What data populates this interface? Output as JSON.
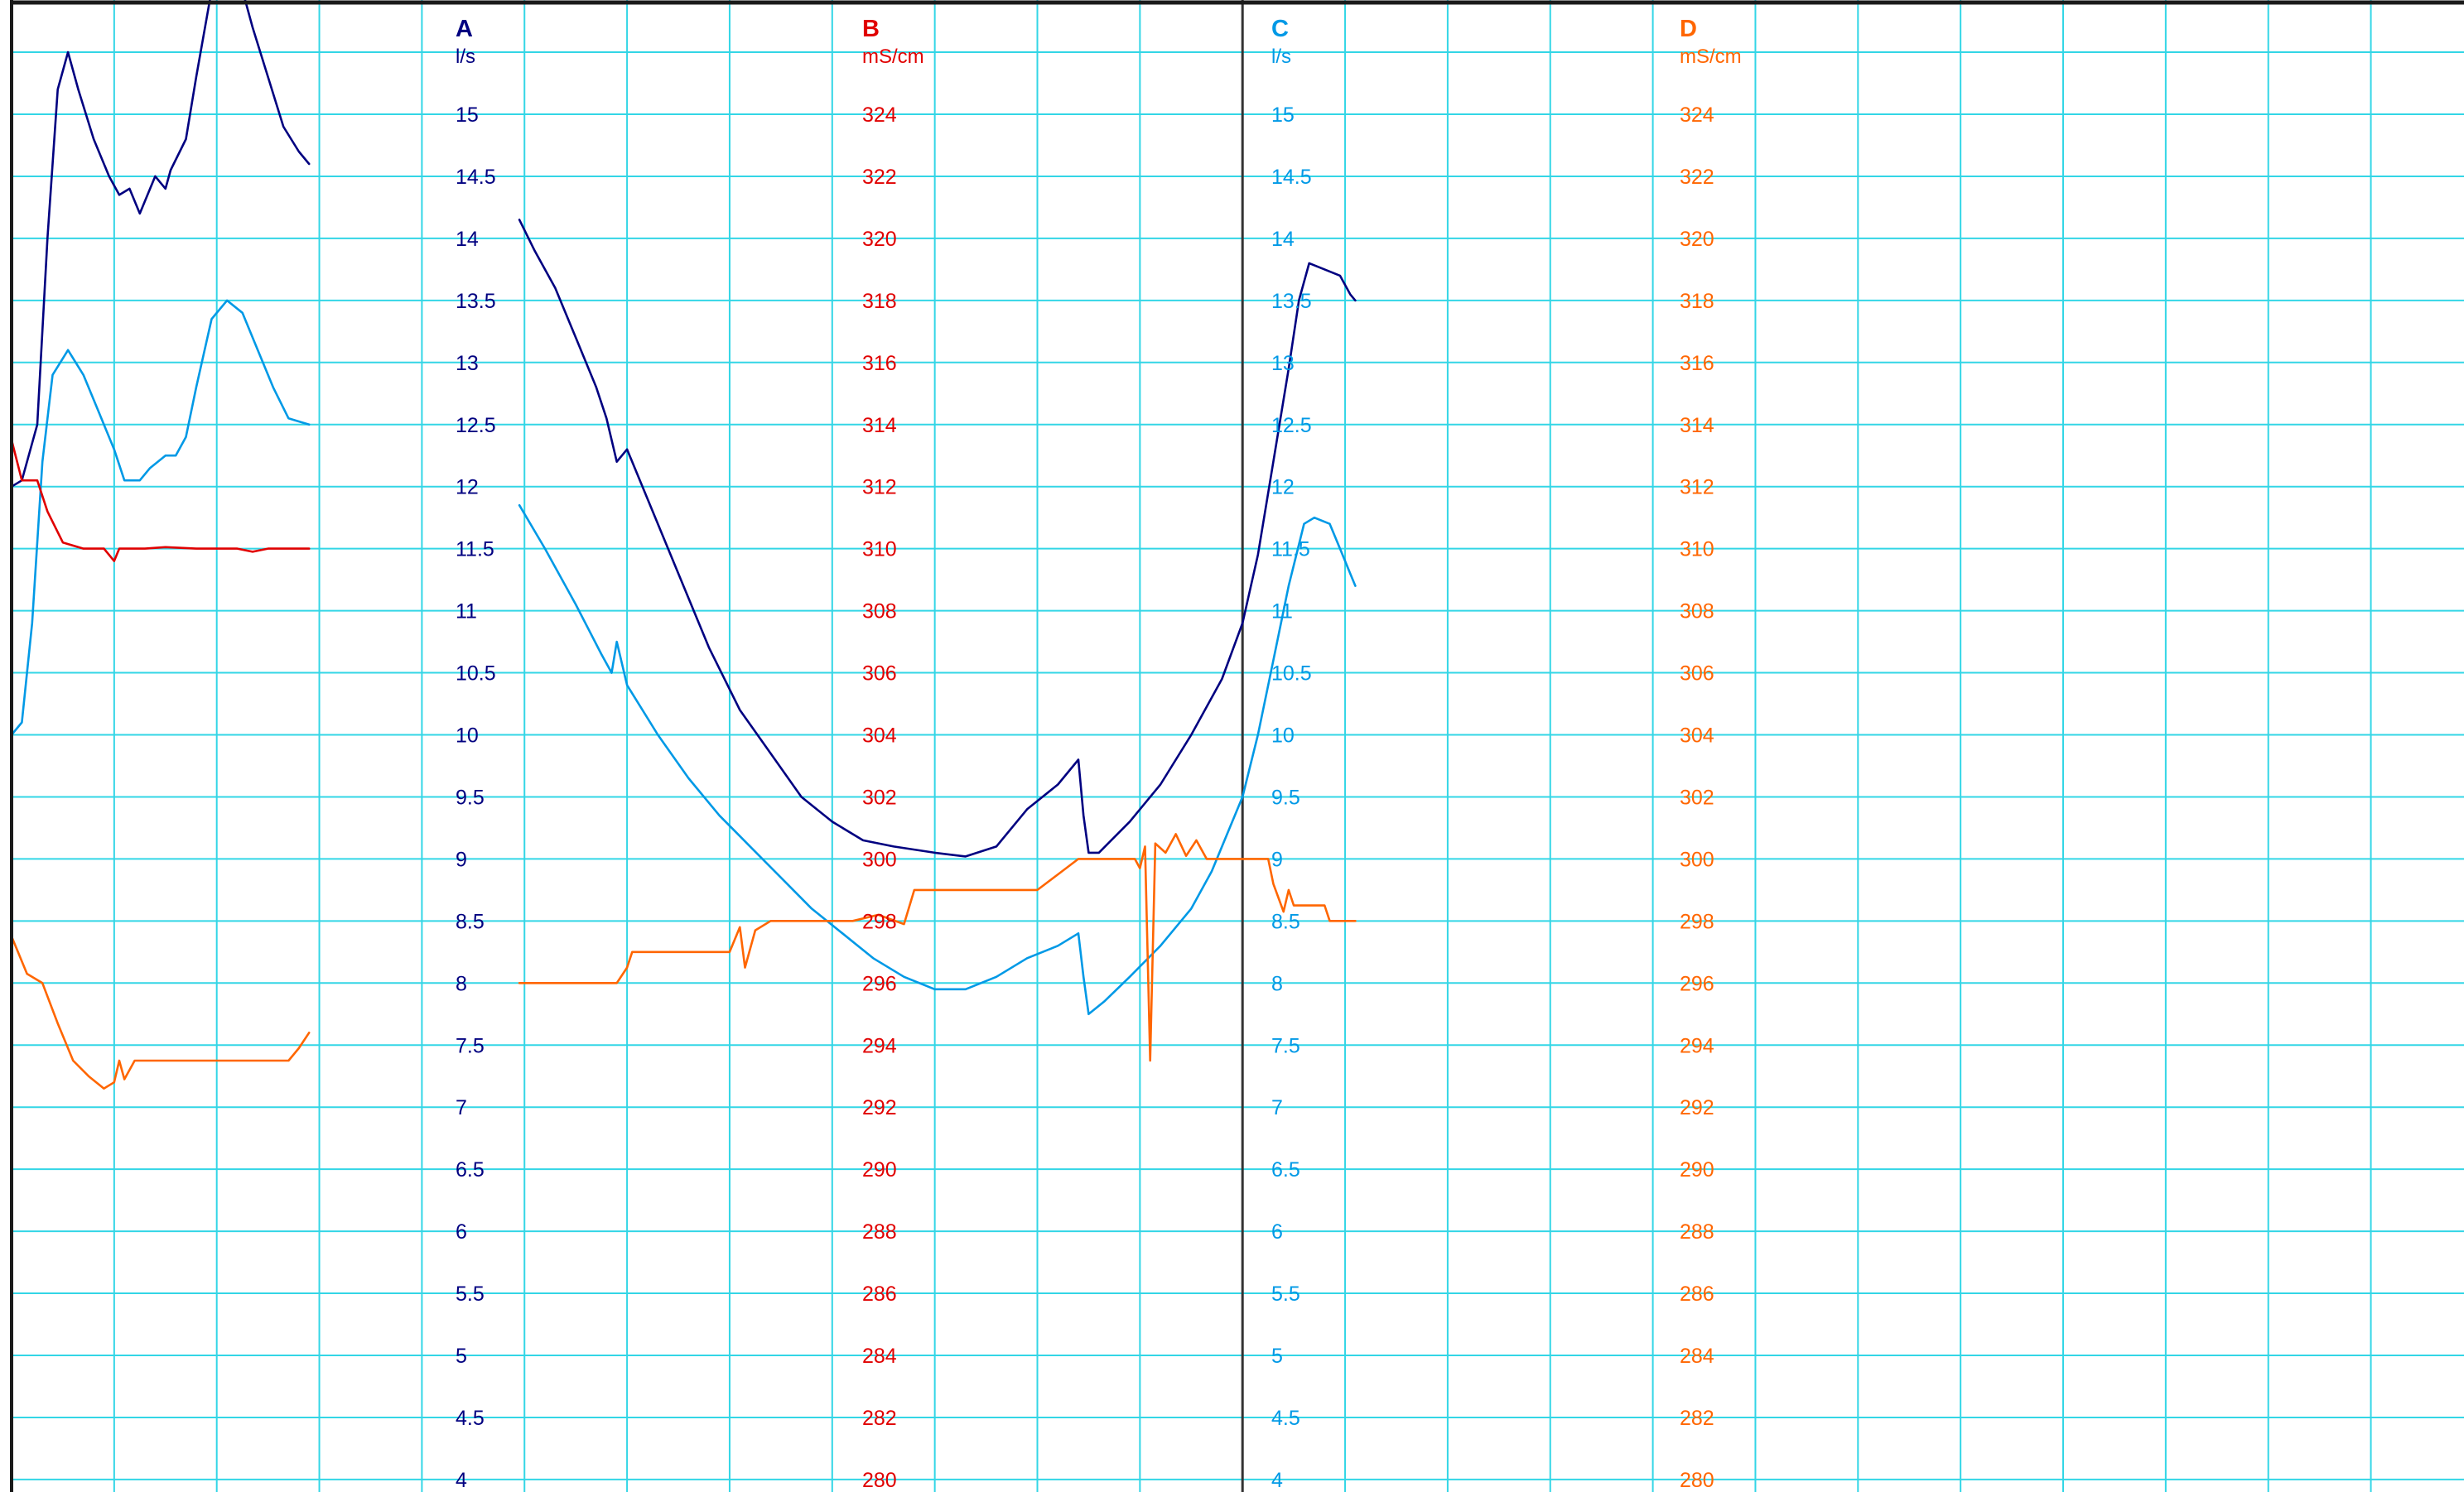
{
  "colors": {
    "background": "#ffffff",
    "grid": "#33d6e6",
    "frame": "#1a1a1a",
    "divider": "#333333",
    "A": "#000080",
    "B": "#e00000",
    "C": "#0099e6",
    "D": "#ff6600"
  },
  "chart_data": {
    "type": "line",
    "title": "",
    "grid": true,
    "axes": [
      {
        "letter": "A",
        "unit": "l/s",
        "min": 4,
        "max": 15,
        "step": 0.5,
        "ticks": [
          "15",
          "14.5",
          "14",
          "13.5",
          "13",
          "12.5",
          "12",
          "11.5",
          "11",
          "10.5",
          "10",
          "9.5",
          "9",
          "8.5",
          "8",
          "7.5",
          "7",
          "6.5",
          "6",
          "5.5",
          "5",
          "4.5",
          "4"
        ]
      },
      {
        "letter": "B",
        "unit": "mS/cm",
        "min": 280,
        "max": 324,
        "step": 2,
        "ticks": [
          "324",
          "322",
          "320",
          "318",
          "316",
          "314",
          "312",
          "310",
          "308",
          "306",
          "304",
          "302",
          "300",
          "298",
          "296",
          "294",
          "292",
          "290",
          "288",
          "286",
          "284",
          "282",
          "280"
        ]
      },
      {
        "letter": "C",
        "unit": "l/s",
        "min": 4,
        "max": 15,
        "step": 0.5,
        "ticks": [
          "15",
          "14.5",
          "14",
          "13.5",
          "13",
          "12.5",
          "12",
          "11.5",
          "11",
          "10.5",
          "10",
          "9.5",
          "9",
          "8.5",
          "8",
          "7.5",
          "7",
          "6.5",
          "6",
          "5.5",
          "5",
          "4.5",
          "4"
        ]
      },
      {
        "letter": "D",
        "unit": "mS/cm",
        "min": 280,
        "max": 324,
        "step": 2,
        "ticks": [
          "324",
          "322",
          "320",
          "318",
          "316",
          "314",
          "312",
          "310",
          "308",
          "306",
          "304",
          "302",
          "300",
          "298",
          "296",
          "294",
          "292",
          "290",
          "288",
          "286",
          "284",
          "282",
          "280"
        ]
      }
    ],
    "x_range": [
      0,
      24
    ],
    "x_unit": "grid divisions",
    "panel_split_x": 12,
    "series": [
      {
        "axis": "A",
        "segments": [
          [
            [
              0,
              12
            ],
            [
              0.1,
              12.05
            ],
            [
              0.25,
              12.5
            ],
            [
              0.35,
              14
            ],
            [
              0.45,
              15.2
            ],
            [
              0.55,
              15.5
            ],
            [
              0.65,
              15.2
            ],
            [
              0.8,
              14.8
            ],
            [
              0.95,
              14.5
            ],
            [
              1.05,
              14.35
            ],
            [
              1.15,
              14.4
            ],
            [
              1.25,
              14.2
            ],
            [
              1.3,
              14.3
            ],
            [
              1.4,
              14.5
            ],
            [
              1.5,
              14.4
            ],
            [
              1.55,
              14.55
            ],
            [
              1.7,
              14.8
            ],
            [
              1.8,
              15.3
            ],
            [
              1.95,
              16
            ],
            [
              2.1,
              16.2
            ],
            [
              2.25,
              16
            ],
            [
              2.35,
              15.7
            ],
            [
              2.5,
              15.3
            ],
            [
              2.65,
              14.9
            ],
            [
              2.8,
              14.7
            ],
            [
              2.9,
              14.6
            ]
          ],
          [
            [
              4.95,
              14.15
            ],
            [
              5.1,
              13.9
            ],
            [
              5.3,
              13.6
            ],
            [
              5.5,
              13.2
            ],
            [
              5.7,
              12.8
            ],
            [
              5.8,
              12.55
            ],
            [
              5.9,
              12.2
            ],
            [
              6,
              12.3
            ],
            [
              6.2,
              11.9
            ],
            [
              6.5,
              11.3
            ],
            [
              6.8,
              10.7
            ],
            [
              7.1,
              10.2
            ],
            [
              7.4,
              9.85
            ],
            [
              7.7,
              9.5
            ],
            [
              8,
              9.3
            ],
            [
              8.3,
              9.15
            ],
            [
              8.6,
              9.1
            ],
            [
              9,
              9.05
            ],
            [
              9.3,
              9.02
            ],
            [
              9.6,
              9.1
            ],
            [
              9.9,
              9.4
            ],
            [
              10.2,
              9.6
            ],
            [
              10.4,
              9.8
            ],
            [
              10.45,
              9.35
            ],
            [
              10.5,
              9.05
            ],
            [
              10.6,
              9.05
            ],
            [
              10.9,
              9.3
            ],
            [
              11.2,
              9.6
            ],
            [
              11.5,
              10
            ],
            [
              11.8,
              10.45
            ],
            [
              12,
              10.9
            ],
            [
              12.15,
              11.45
            ],
            [
              12.3,
              12.2
            ],
            [
              12.45,
              12.95
            ],
            [
              12.55,
              13.5
            ],
            [
              12.65,
              13.8
            ],
            [
              12.8,
              13.75
            ],
            [
              12.95,
              13.7
            ],
            [
              13.05,
              13.55
            ],
            [
              13.1,
              13.5
            ]
          ]
        ]
      },
      {
        "axis": "C",
        "segments": [
          [
            [
              0,
              10
            ],
            [
              0.1,
              10.1
            ],
            [
              0.2,
              10.9
            ],
            [
              0.3,
              12.2
            ],
            [
              0.4,
              12.9
            ],
            [
              0.55,
              13.1
            ],
            [
              0.7,
              12.9
            ],
            [
              0.85,
              12.6
            ],
            [
              1,
              12.3
            ],
            [
              1.1,
              12.05
            ],
            [
              1.25,
              12.05
            ],
            [
              1.35,
              12.15
            ],
            [
              1.5,
              12.25
            ],
            [
              1.6,
              12.25
            ],
            [
              1.7,
              12.4
            ],
            [
              1.8,
              12.8
            ],
            [
              1.95,
              13.35
            ],
            [
              2.1,
              13.5
            ],
            [
              2.25,
              13.4
            ],
            [
              2.4,
              13.1
            ],
            [
              2.55,
              12.8
            ],
            [
              2.7,
              12.55
            ],
            [
              2.9,
              12.5
            ]
          ],
          [
            [
              4.95,
              11.85
            ],
            [
              5.2,
              11.5
            ],
            [
              5.5,
              11.05
            ],
            [
              5.75,
              10.65
            ],
            [
              5.85,
              10.5
            ],
            [
              5.9,
              10.75
            ],
            [
              6,
              10.4
            ],
            [
              6.3,
              10
            ],
            [
              6.6,
              9.65
            ],
            [
              6.9,
              9.35
            ],
            [
              7.2,
              9.1
            ],
            [
              7.5,
              8.85
            ],
            [
              7.8,
              8.6
            ],
            [
              8.1,
              8.4
            ],
            [
              8.4,
              8.2
            ],
            [
              8.7,
              8.05
            ],
            [
              9,
              7.95
            ],
            [
              9.3,
              7.95
            ],
            [
              9.6,
              8.05
            ],
            [
              9.9,
              8.2
            ],
            [
              10.2,
              8.3
            ],
            [
              10.4,
              8.4
            ],
            [
              10.45,
              8.05
            ],
            [
              10.5,
              7.75
            ],
            [
              10.65,
              7.85
            ],
            [
              10.9,
              8.05
            ],
            [
              11.2,
              8.3
            ],
            [
              11.5,
              8.6
            ],
            [
              11.7,
              8.9
            ],
            [
              11.85,
              9.2
            ],
            [
              12,
              9.5
            ],
            [
              12.15,
              10
            ],
            [
              12.3,
              10.6
            ],
            [
              12.45,
              11.2
            ],
            [
              12.6,
              11.7
            ],
            [
              12.7,
              11.75
            ],
            [
              12.85,
              11.7
            ],
            [
              12.95,
              11.5
            ],
            [
              13.05,
              11.3
            ],
            [
              13.1,
              11.2
            ]
          ]
        ]
      },
      {
        "axis": "B",
        "segments": [
          [
            [
              0,
              313.5
            ],
            [
              0.1,
              312.2
            ],
            [
              0.25,
              312.2
            ],
            [
              0.35,
              311.2
            ],
            [
              0.5,
              310.2
            ],
            [
              0.7,
              310
            ],
            [
              0.9,
              310
            ],
            [
              1,
              309.6
            ],
            [
              1.05,
              310
            ],
            [
              1.3,
              310
            ],
            [
              1.5,
              310.05
            ],
            [
              1.8,
              310
            ],
            [
              2.2,
              310
            ],
            [
              2.35,
              309.9
            ],
            [
              2.5,
              310
            ],
            [
              2.9,
              310
            ]
          ]
        ]
      },
      {
        "axis": "D",
        "segments": [
          [
            [
              0,
              297.5
            ],
            [
              0.15,
              296.3
            ],
            [
              0.3,
              296
            ],
            [
              0.45,
              294.7
            ],
            [
              0.6,
              293.5
            ],
            [
              0.75,
              293
            ],
            [
              0.9,
              292.6
            ],
            [
              1,
              292.8
            ],
            [
              1.05,
              293.5
            ],
            [
              1.1,
              292.9
            ],
            [
              1.2,
              293.5
            ],
            [
              1.5,
              293.5
            ],
            [
              1.9,
              293.5
            ],
            [
              2.3,
              293.5
            ],
            [
              2.7,
              293.5
            ],
            [
              2.8,
              293.9
            ],
            [
              2.9,
              294.4
            ]
          ],
          [
            [
              4.95,
              296
            ],
            [
              5.5,
              296
            ],
            [
              5.9,
              296
            ],
            [
              6,
              296.5
            ],
            [
              6.05,
              297
            ],
            [
              6.5,
              297
            ],
            [
              7,
              297
            ],
            [
              7.1,
              297.8
            ],
            [
              7.15,
              296.5
            ],
            [
              7.25,
              297.7
            ],
            [
              7.4,
              298
            ],
            [
              7.8,
              298
            ],
            [
              8.2,
              298
            ],
            [
              8.45,
              298.2
            ],
            [
              8.7,
              297.9
            ],
            [
              8.8,
              299
            ],
            [
              9.2,
              299
            ],
            [
              9.6,
              299
            ],
            [
              10,
              299
            ],
            [
              10.2,
              299.5
            ],
            [
              10.4,
              300
            ],
            [
              10.7,
              300
            ],
            [
              10.95,
              300
            ],
            [
              11,
              299.7
            ],
            [
              11.05,
              300.4
            ],
            [
              11.1,
              293.5
            ],
            [
              11.15,
              300.5
            ],
            [
              11.25,
              300.2
            ],
            [
              11.35,
              300.8
            ],
            [
              11.45,
              300.1
            ],
            [
              11.55,
              300.6
            ],
            [
              11.65,
              300
            ],
            [
              12,
              300
            ],
            [
              12.25,
              300
            ],
            [
              12.3,
              299.2
            ],
            [
              12.4,
              298.3
            ],
            [
              12.45,
              299
            ],
            [
              12.5,
              298.5
            ],
            [
              12.8,
              298.5
            ],
            [
              12.85,
              298
            ],
            [
              13.1,
              298
            ]
          ]
        ]
      }
    ]
  }
}
